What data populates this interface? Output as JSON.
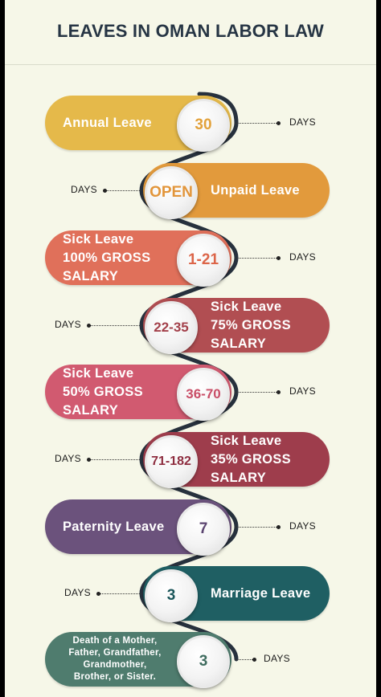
{
  "title": "LEAVES IN OMAN LABOR LAW",
  "days_label": "DAYS",
  "colors": {
    "background": "#f6f7e8",
    "track": "#27313d",
    "title": "#263544"
  },
  "leaves": [
    {
      "label": "Annual Leave",
      "value": "30",
      "color": "#e5b94a",
      "text_color": "#e2a13a",
      "side": "left"
    },
    {
      "label": "Unpaid Leave",
      "value": "OPEN",
      "color": "#e29a3c",
      "text_color": "#e2953a",
      "side": "right"
    },
    {
      "label": "Sick Leave\n100% GROSS\nSALARY",
      "value": "1-21",
      "color": "#e0705a",
      "text_color": "#dc6549",
      "side": "left"
    },
    {
      "label": "Sick Leave\n75% GROSS\nSALARY",
      "value": "22-35",
      "color": "#b14e52",
      "text_color": "#a3404a",
      "side": "right"
    },
    {
      "label": "Sick Leave\n50% GROSS\nSALARY",
      "value": "36-70",
      "color": "#d15a70",
      "text_color": "#c94e67",
      "side": "left"
    },
    {
      "label": "Sick Leave\n35% GROSS\nSALARY",
      "value": "71-182",
      "color": "#9e3d4c",
      "text_color": "#8e2e40",
      "side": "right"
    },
    {
      "label": "Paternity Leave",
      "value": "7",
      "color": "#6b527c",
      "text_color": "#5b4470",
      "side": "left"
    },
    {
      "label": "Marriage Leave",
      "value": "3",
      "color": "#1f5f63",
      "text_color": "#1a5559",
      "side": "right"
    },
    {
      "label": "Death of a Mother,\nFather, Grandfather,\nGrandmother,\nBrother, or Sister.",
      "value": "3",
      "color": "#4f7c6e",
      "text_color": "#3f6c5f",
      "side": "left",
      "small": true
    }
  ]
}
